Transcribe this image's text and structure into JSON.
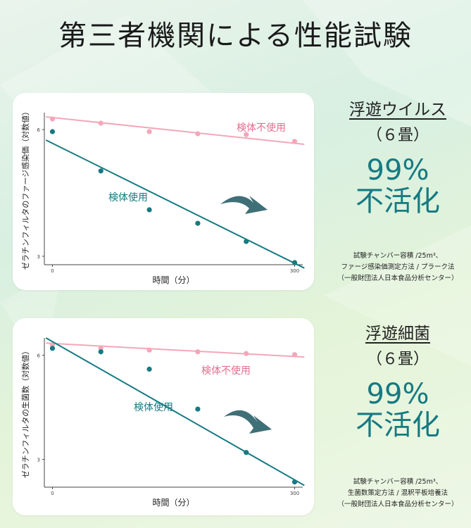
{
  "title": "第三者機関による性能試験",
  "colors": {
    "teal": "#167a82",
    "pink": "#f3a7b9",
    "pink_label": "#e56d8f"
  },
  "panels": [
    {
      "category": "浮遊ウイルス",
      "room": "（６畳）",
      "percent": "99%",
      "result": "不活化",
      "notes": [
        "試験チャンバー容積 /25m³、",
        "ファージ感染価測定方法 / プラーク法",
        "（一般財団法人日本食品分析センター）"
      ]
    },
    {
      "category": "浮遊細菌",
      "room": "（６畳）",
      "percent": "99%",
      "result": "不活化",
      "notes": [
        "試験チャンバー容積 /25m³、",
        "生菌数策定方法 / 混釈平板培養法",
        "（一般財団法人日本食品分析センター）"
      ]
    }
  ],
  "chart_data": [
    {
      "type": "scatter",
      "title": "",
      "xlabel": "時間（分）",
      "ylabel": "ゼラチンフィルタのファージ感染価（対数値）",
      "xlim": [
        -10,
        310
      ],
      "ylim": [
        2.8,
        6.4
      ],
      "xticks": [
        0,
        300
      ],
      "yticks": [
        3,
        6
      ],
      "series": [
        {
          "name": "検体不使用",
          "color": "#f3a7b9",
          "x": [
            0,
            60,
            120,
            180,
            240,
            300
          ],
          "y": [
            6.25,
            6.15,
            5.95,
            5.9,
            5.88,
            5.72
          ],
          "trend": [
            6.3,
            5.65
          ]
        },
        {
          "name": "検体使用",
          "color": "#167a82",
          "x": [
            0,
            60,
            120,
            180,
            240,
            300
          ],
          "y": [
            5.95,
            5.02,
            4.1,
            3.78,
            3.35,
            2.85
          ],
          "trend": [
            5.75,
            2.72
          ]
        }
      ]
    },
    {
      "type": "scatter",
      "title": "",
      "xlabel": "時間（分）",
      "ylabel": "ゼラチンフィルタの生菌数（対数値）",
      "xlim": [
        -10,
        310
      ],
      "ylim": [
        2.2,
        6.5
      ],
      "xticks": [
        0,
        300
      ],
      "yticks": [
        3,
        6
      ],
      "series": [
        {
          "name": "検体不使用",
          "color": "#f3a7b9",
          "x": [
            0,
            60,
            120,
            180,
            240,
            300
          ],
          "y": [
            6.3,
            6.2,
            6.15,
            6.1,
            6.05,
            6.02
          ],
          "trend": [
            6.35,
            5.95
          ]
        },
        {
          "name": "検体使用",
          "color": "#167a82",
          "x": [
            0,
            60,
            120,
            180,
            240,
            300
          ],
          "y": [
            6.2,
            6.1,
            5.6,
            4.45,
            3.2,
            2.35
          ],
          "trend": [
            6.5,
            2.25
          ]
        }
      ]
    }
  ]
}
